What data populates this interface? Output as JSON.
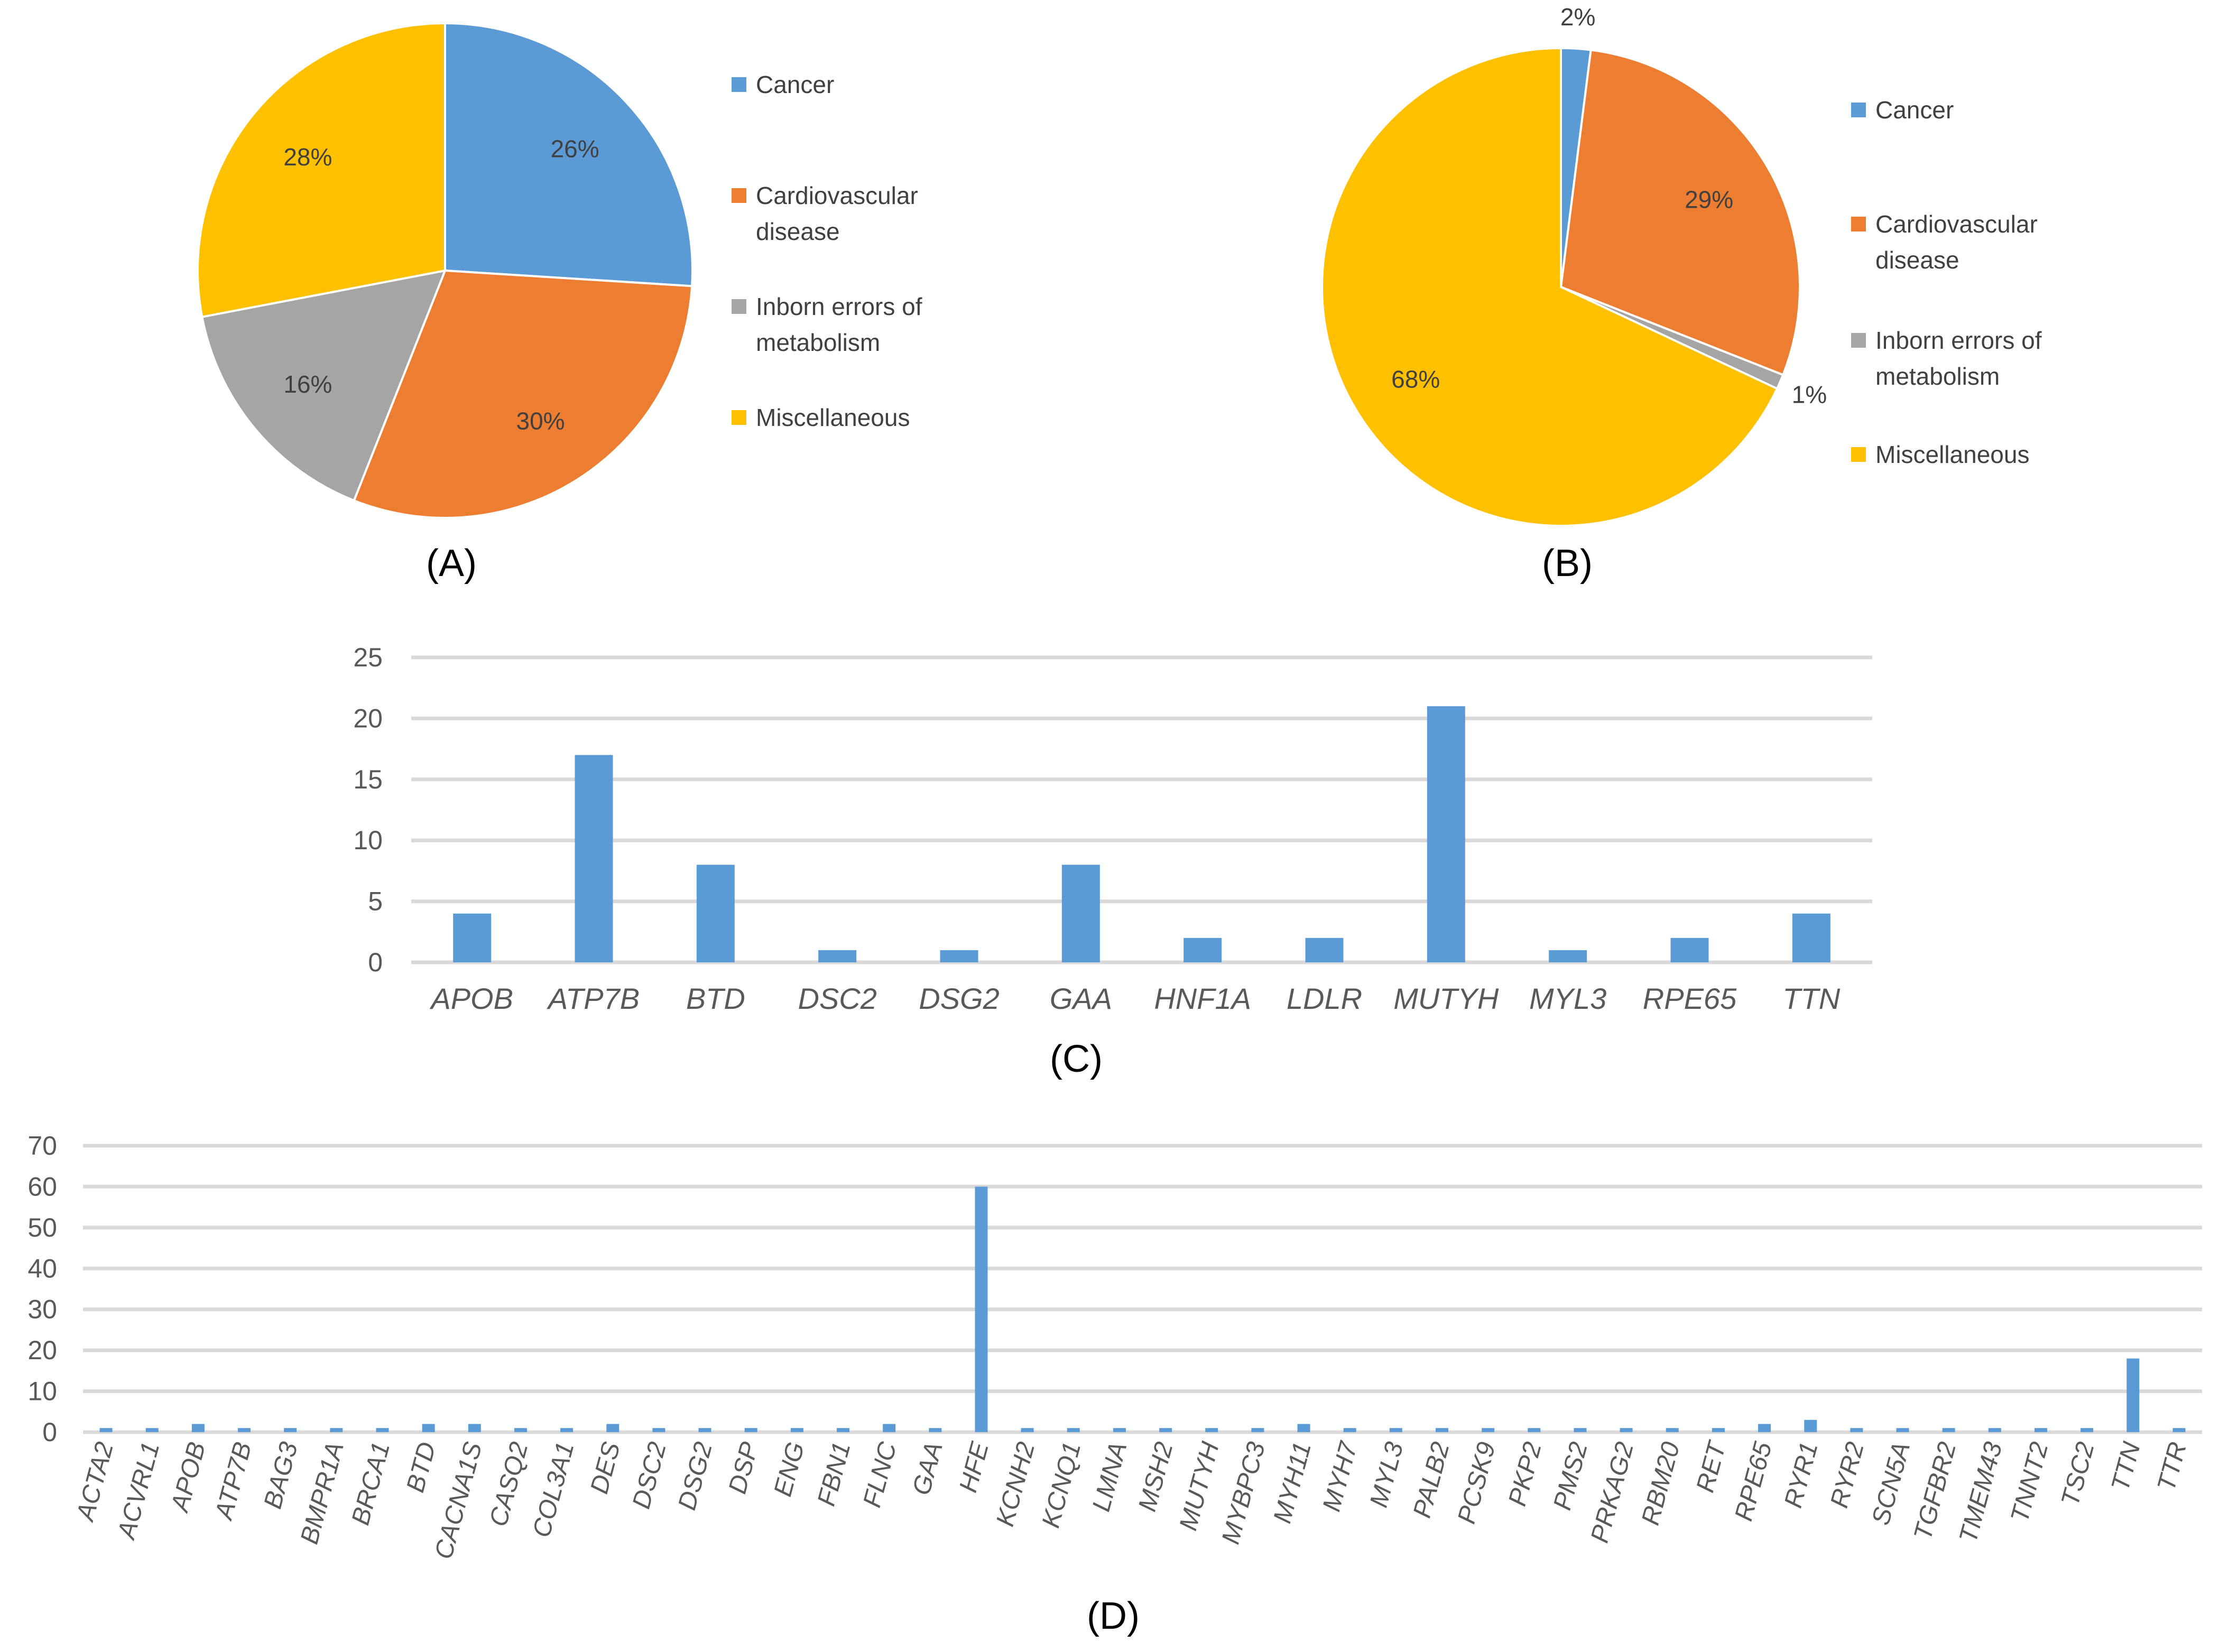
{
  "colors": {
    "cancer": "#5B9BD5",
    "cardiovascular": "#ED7D31",
    "inborn": "#A5A5A5",
    "misc": "#FFC000",
    "bar": "#5B9BD5",
    "grid": "#D9D9D9"
  },
  "chart_data": [
    {
      "type": "pie",
      "panel": "(A)",
      "slices": [
        {
          "label": "Cancer",
          "value": 26,
          "text": "26%",
          "color_key": "cancer"
        },
        {
          "label": "Cardiovascular disease",
          "value": 30,
          "text": "30%",
          "color_key": "cardiovascular"
        },
        {
          "label": "Inborn errors of metabolism",
          "value": 16,
          "text": "16%",
          "color_key": "inborn"
        },
        {
          "label": "Miscellaneous",
          "value": 28,
          "text": "28%",
          "color_key": "misc"
        }
      ],
      "legend": [
        {
          "lines": [
            "Cancer"
          ],
          "color_key": "cancer"
        },
        {
          "lines": [
            "Cardiovascular",
            "disease"
          ],
          "color_key": "cardiovascular"
        },
        {
          "lines": [
            "Inborn errors of",
            "metabolism"
          ],
          "color_key": "inborn"
        },
        {
          "lines": [
            "Miscellaneous"
          ],
          "color_key": "misc"
        }
      ]
    },
    {
      "type": "pie",
      "panel": "(B)",
      "slices": [
        {
          "label": "Cancer",
          "value": 2,
          "text": "2%",
          "color_key": "cancer"
        },
        {
          "label": "Cardiovascular disease",
          "value": 29,
          "text": "29%",
          "color_key": "cardiovascular"
        },
        {
          "label": "Inborn errors of metabolism",
          "value": 1,
          "text": "1%",
          "color_key": "inborn"
        },
        {
          "label": "Miscellaneous",
          "value": 68,
          "text": "68%",
          "color_key": "misc"
        }
      ],
      "legend": [
        {
          "lines": [
            "Cancer"
          ],
          "color_key": "cancer"
        },
        {
          "lines": [
            "Cardiovascular",
            "disease"
          ],
          "color_key": "cardiovascular"
        },
        {
          "lines": [
            "Inborn errors of",
            "metabolism"
          ],
          "color_key": "inborn"
        },
        {
          "lines": [
            "Miscellaneous"
          ],
          "color_key": "misc"
        }
      ]
    },
    {
      "type": "bar",
      "panel": "(C)",
      "categories": [
        "APOB",
        "ATP7B",
        "BTD",
        "DSC2",
        "DSG2",
        "GAA",
        "HNF1A",
        "LDLR",
        "MUTYH",
        "MYL3",
        "RPE65",
        "TTN"
      ],
      "values": [
        4,
        17,
        8,
        1,
        1,
        8,
        2,
        2,
        21,
        1,
        2,
        4
      ],
      "ylim": [
        0,
        25
      ],
      "yticks": [
        0,
        5,
        10,
        15,
        20,
        25
      ],
      "grid": true
    },
    {
      "type": "bar",
      "panel": "(D)",
      "categories": [
        "ACTA2",
        "ACVRL1",
        "APOB",
        "ATP7B",
        "BAG3",
        "BMPR1A",
        "BRCA1",
        "BTD",
        "CACNA1S",
        "CASQ2",
        "COL3A1",
        "DES",
        "DSC2",
        "DSG2",
        "DSP",
        "ENG",
        "FBN1",
        "FLNC",
        "GAA",
        "HFE",
        "KCNH2",
        "KCNQ1",
        "LMNA",
        "MSH2",
        "MUTYH",
        "MYBPC3",
        "MYH11",
        "MYH7",
        "MYL3",
        "PALB2",
        "PCSK9",
        "PKP2",
        "PMS2",
        "PRKAG2",
        "RBM20",
        "RET",
        "RPE65",
        "RYR1",
        "RYR2",
        "SCN5A",
        "TGFBR2",
        "TMEM43",
        "TNNT2",
        "TSC2",
        "TTN",
        "TTR"
      ],
      "values": [
        1,
        1,
        2,
        1,
        1,
        1,
        1,
        2,
        2,
        1,
        1,
        2,
        1,
        1,
        1,
        1,
        1,
        2,
        1,
        60,
        1,
        1,
        1,
        1,
        1,
        1,
        2,
        1,
        1,
        1,
        1,
        1,
        1,
        1,
        1,
        1,
        2,
        3,
        1,
        1,
        1,
        1,
        1,
        1,
        18,
        1
      ],
      "ylim": [
        0,
        70
      ],
      "yticks": [
        0,
        10,
        20,
        30,
        40,
        50,
        60,
        70
      ],
      "grid": true
    }
  ]
}
